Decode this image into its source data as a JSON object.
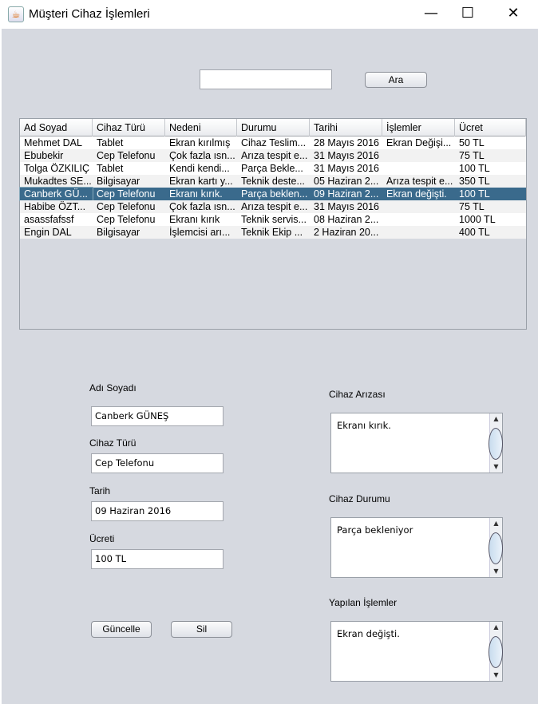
{
  "window": {
    "title": "Müşteri Cihaz İşlemleri",
    "minimize": "—",
    "maximize": "☐",
    "close": "✕"
  },
  "search": {
    "value": "",
    "button": "Ara"
  },
  "table": {
    "columns": [
      "Ad Soyad",
      "Cihaz Türü",
      "Nedeni",
      "Durumu",
      "Tarihi",
      "İşlemler",
      "Ücret"
    ],
    "rows": [
      [
        "Mehmet DAL",
        "Tablet",
        "Ekran kırılmış",
        "Cihaz Teslim...",
        "28 Mayıs 2016",
        "Ekran Değişi...",
        "50 TL"
      ],
      [
        "Ebubekir",
        "Cep Telefonu",
        "Çok fazla ısn...",
        "Arıza tespit e...",
        "31 Mayıs 2016",
        "",
        "75 TL"
      ],
      [
        "Tolga ÖZKILIÇ",
        "Tablet",
        "Kendi kendi...",
        "Parça Bekle...",
        "31 Mayıs 2016",
        "",
        "100 TL"
      ],
      [
        "Mukadtes SE...",
        "Bilgisayar",
        "Ekran kartı y...",
        "Teknik deste...",
        "05 Haziran 2...",
        "Arıza tespit e...",
        "350 TL"
      ],
      [
        "Canberk GÜ...",
        "Cep Telefonu",
        "Ekranı kırık.",
        "Parça beklen...",
        "09 Haziran 2...",
        "Ekran değişti.",
        "100 TL"
      ],
      [
        "Habibe ÖZT...",
        "Cep Telefonu",
        "Çok fazla ısn...",
        "Arıza tespit e...",
        "31 Mayıs 2016",
        "",
        "75 TL"
      ],
      [
        "asassfafssf",
        "Cep Telefonu",
        "Ekranı kırık",
        "Teknik servis...",
        "08 Haziran 2...",
        "",
        "1000 TL"
      ],
      [
        "Engin DAL",
        "Bilgisayar",
        "İşlemcisi arı...",
        "Teknik Ekip ...",
        "2 Haziran 20...",
        "",
        "400 TL"
      ]
    ],
    "selected_row": 4,
    "selected_color": "#3a6a8c"
  },
  "form": {
    "name_label": "Adı Soyadı",
    "name_value": "Canberk GÜNEŞ",
    "type_label": "Cihaz Türü",
    "type_value": "Cep Telefonu",
    "date_label": "Tarih",
    "date_value": "09 Haziran 2016",
    "fee_label": "Ücreti",
    "fee_value": "100 TL",
    "fault_label": "Cihaz Arızası",
    "fault_value": "Ekranı kırık.",
    "status_label": "Cihaz Durumu",
    "status_value": "Parça bekleniyor",
    "ops_label": "Yapılan İşlemler",
    "ops_value": "Ekran değişti.",
    "update_button": "Güncelle",
    "delete_button": "Sil"
  }
}
